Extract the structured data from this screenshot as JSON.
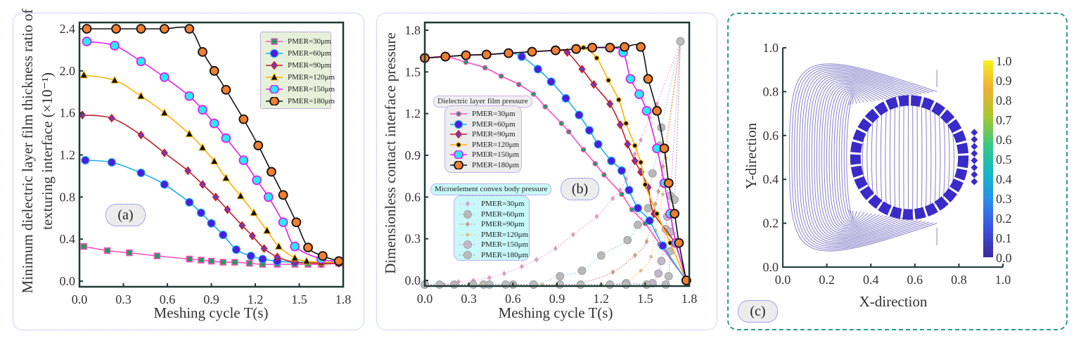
{
  "chart_data": [
    {
      "panel_label": "(a)",
      "type": "line",
      "xlabel": "Meshing cycle T(s)",
      "ylabel_line1": "Minimum dielectric layer film thickness ratio of",
      "ylabel_line2": "texturing interface (×10⁻¹)",
      "xlim": [
        0,
        1.8
      ],
      "ylim": [
        0,
        2.4
      ],
      "x_ticks": [
        "0.0",
        "0.3",
        "0.6",
        "0.9",
        "1.2",
        "1.5",
        "1.8"
      ],
      "y_ticks": [
        "0.0",
        "0.4",
        "0.8",
        "1.2",
        "1.6",
        "2.0",
        "2.4"
      ],
      "legend_placement": "top-right",
      "series": [
        {
          "name": "PMER=30μm",
          "color": "#ff4fc8",
          "marker": "square",
          "marker_fill": "#1f9e5a",
          "x": [
            0.03,
            0.19,
            0.34,
            0.53,
            0.75,
            0.83,
            0.9,
            0.98,
            1.06,
            1.16,
            1.25,
            1.35,
            1.47,
            1.56,
            1.65,
            1.77
          ],
          "y": [
            0.33,
            0.29,
            0.27,
            0.24,
            0.21,
            0.2,
            0.19,
            0.18,
            0.18,
            0.17,
            0.16,
            0.16,
            0.16,
            0.16,
            0.16,
            0.17
          ]
        },
        {
          "name": "PMER=60μm",
          "color": "#1eaaf0",
          "marker": "circle",
          "marker_fill": "#4a1de0",
          "x": [
            0.04,
            0.22,
            0.42,
            0.58,
            0.75,
            0.83,
            0.9,
            0.98,
            1.07,
            1.17,
            1.25,
            1.35,
            1.47,
            1.65,
            1.77
          ],
          "y": [
            1.15,
            1.13,
            1.03,
            0.92,
            0.75,
            0.65,
            0.55,
            0.44,
            0.3,
            0.24,
            0.21,
            0.19,
            0.18,
            0.18,
            0.18
          ]
        },
        {
          "name": "PMER=90μm",
          "color": "#c0202a",
          "marker": "diamond",
          "marker_fill": "#6a3ad0",
          "x": [
            0.02,
            0.22,
            0.42,
            0.58,
            0.74,
            0.84,
            0.93,
            1.01,
            1.11,
            1.18,
            1.26,
            1.35,
            1.47,
            1.65,
            1.77
          ],
          "y": [
            1.58,
            1.55,
            1.39,
            1.22,
            1.05,
            0.92,
            0.8,
            0.68,
            0.53,
            0.43,
            0.31,
            0.23,
            0.18,
            0.17,
            0.17
          ]
        },
        {
          "name": "PMER=120μm",
          "color": "#ffb000",
          "marker": "triangle",
          "marker_fill": "#111111",
          "x": [
            0.03,
            0.24,
            0.42,
            0.58,
            0.75,
            0.84,
            0.92,
            1.0,
            1.1,
            1.19,
            1.28,
            1.36,
            1.47,
            1.55,
            1.65,
            1.77
          ],
          "y": [
            1.96,
            1.91,
            1.76,
            1.6,
            1.4,
            1.27,
            1.14,
            0.98,
            0.81,
            0.65,
            0.48,
            0.33,
            0.22,
            0.19,
            0.18,
            0.18
          ]
        },
        {
          "name": "PMER=150μm",
          "color": "#dd22ee",
          "marker": "circle-large",
          "marker_fill": "#22eef8",
          "x": [
            0.05,
            0.24,
            0.42,
            0.58,
            0.75,
            0.84,
            0.92,
            1.0,
            1.12,
            1.21,
            1.29,
            1.39,
            1.47,
            1.65,
            1.77
          ],
          "y": [
            2.28,
            2.24,
            2.09,
            1.94,
            1.76,
            1.63,
            1.5,
            1.36,
            1.15,
            0.96,
            0.8,
            0.56,
            0.33,
            0.21,
            0.19
          ]
        },
        {
          "name": "PMER=180μm",
          "color": "#111111",
          "marker": "circle-large",
          "marker_fill": "#f07f30",
          "x": [
            0.05,
            0.25,
            0.42,
            0.58,
            0.75,
            0.84,
            0.92,
            1.0,
            1.12,
            1.22,
            1.31,
            1.39,
            1.48,
            1.56,
            1.66,
            1.77
          ],
          "y": [
            2.4,
            2.4,
            2.4,
            2.4,
            2.4,
            2.18,
            2.0,
            1.82,
            1.54,
            1.29,
            1.04,
            0.82,
            0.56,
            0.32,
            0.24,
            0.19
          ]
        }
      ]
    },
    {
      "panel_label": "(b)",
      "type": "line",
      "xlabel": "Meshing cycle T(s)",
      "ylabel": "Dimensionless contact interface pressure",
      "xlim": [
        0,
        1.8
      ],
      "ylim": [
        -0.04,
        1.86
      ],
      "x_ticks": [
        "0.0",
        "0.3",
        "0.6",
        "0.9",
        "1.2",
        "1.5",
        "1.8"
      ],
      "y_ticks": [
        "0.0",
        "0.3",
        "0.6",
        "0.9",
        "1.2",
        "1.5",
        "1.8"
      ],
      "legend_groups": [
        {
          "title": "Dielectric layer film pressure",
          "placement": "center-left"
        },
        {
          "title": "Microelement convex body pressure",
          "placement": "bottom-left"
        }
      ],
      "series_film": [
        {
          "name": "PMER=30μm",
          "color": "#ff4fc8",
          "marker": "dot",
          "marker_fill": "#1f9e5a",
          "x": [
            0,
            0.14,
            0.28,
            0.41,
            0.52,
            0.64,
            0.74,
            0.82,
            0.93,
            0.98,
            1.08,
            1.16,
            1.22,
            1.34,
            1.41,
            1.5,
            1.6,
            1.78
          ],
          "y": [
            1.6,
            1.61,
            1.57,
            1.53,
            1.47,
            1.41,
            1.34,
            1.25,
            1.13,
            1.07,
            0.94,
            0.84,
            0.76,
            0.62,
            0.51,
            0.41,
            0.26,
            0.0
          ]
        },
        {
          "name": "PMER=60μm",
          "color": "#1eaaf0",
          "marker": "circle",
          "marker_fill": "#4a1de0",
          "x": [
            0,
            0.14,
            0.28,
            0.42,
            0.57,
            0.66,
            0.77,
            0.86,
            0.96,
            1.05,
            1.12,
            1.18,
            1.27,
            1.34,
            1.39,
            1.45,
            1.53,
            1.62,
            1.78
          ],
          "y": [
            1.6,
            1.61,
            1.62,
            1.625,
            1.635,
            1.61,
            1.52,
            1.43,
            1.31,
            1.19,
            1.08,
            0.98,
            0.86,
            0.79,
            0.65,
            0.52,
            0.43,
            0.25,
            0.0
          ]
        },
        {
          "name": "PMER=90μm",
          "color": "#c0202a",
          "marker": "diamond",
          "marker_fill": "#6a3ad0",
          "x": [
            0,
            0.14,
            0.28,
            0.42,
            0.57,
            0.73,
            0.89,
            0.97,
            1.07,
            1.15,
            1.26,
            1.33,
            1.38,
            1.43,
            1.47,
            1.52,
            1.56,
            1.7,
            1.78
          ],
          "y": [
            1.6,
            1.61,
            1.62,
            1.625,
            1.635,
            1.645,
            1.655,
            1.64,
            1.52,
            1.41,
            1.27,
            1.12,
            0.98,
            0.86,
            0.78,
            0.67,
            0.48,
            0.27,
            0.0
          ]
        },
        {
          "name": "PMER=120μm",
          "color": "#ffb000",
          "marker": "dot",
          "marker_fill": "#111111",
          "x": [
            0,
            0.14,
            0.28,
            0.42,
            0.57,
            0.73,
            0.89,
            1.03,
            1.08,
            1.17,
            1.25,
            1.32,
            1.37,
            1.43,
            1.47,
            1.5,
            1.58,
            1.67,
            1.78
          ],
          "y": [
            1.6,
            1.61,
            1.62,
            1.625,
            1.635,
            1.645,
            1.655,
            1.665,
            1.675,
            1.6,
            1.44,
            1.3,
            1.13,
            0.97,
            0.85,
            0.69,
            0.48,
            0.27,
            0.0
          ]
        },
        {
          "name": "PMER=150μm",
          "color": "#dd22ee",
          "marker": "circle-large",
          "marker_fill": "#22eef8",
          "x": [
            0,
            0.14,
            0.28,
            0.42,
            0.57,
            0.73,
            0.89,
            1.03,
            1.14,
            1.26,
            1.35,
            1.4,
            1.46,
            1.51,
            1.58,
            1.63,
            1.67,
            1.71,
            1.78
          ],
          "y": [
            1.6,
            1.61,
            1.62,
            1.625,
            1.635,
            1.645,
            1.655,
            1.665,
            1.675,
            1.675,
            1.64,
            1.45,
            1.34,
            1.22,
            0.95,
            0.7,
            0.48,
            0.27,
            0.0
          ]
        },
        {
          "name": "PMER=180μm",
          "color": "#111111",
          "marker": "circle-large",
          "marker_fill": "#f07f30",
          "x": [
            0,
            0.14,
            0.28,
            0.42,
            0.57,
            0.73,
            0.89,
            1.03,
            1.14,
            1.26,
            1.36,
            1.47,
            1.52,
            1.58,
            1.63,
            1.66,
            1.7,
            1.73,
            1.78
          ],
          "y": [
            1.6,
            1.61,
            1.62,
            1.625,
            1.635,
            1.645,
            1.655,
            1.665,
            1.675,
            1.675,
            1.68,
            1.68,
            1.45,
            1.22,
            0.95,
            0.7,
            0.48,
            0.27,
            0.0
          ]
        }
      ],
      "series_convex": [
        {
          "name": "PMER=30μm",
          "color": "#f2a0d8",
          "marker": "diamond-small",
          "marker_fill": "#d8a0c0",
          "x": [
            0,
            0.13,
            0.23,
            0.33,
            0.44,
            0.54,
            0.66,
            0.76,
            0.89,
            1.01,
            1.17,
            1.28,
            1.33,
            1.37,
            1.43,
            1.47,
            1.53,
            1.58,
            1.74
          ],
          "y": [
            -0.03,
            -0.03,
            -0.01,
            0.0,
            0.02,
            0.05,
            0.1,
            0.15,
            0.23,
            0.33,
            0.46,
            0.59,
            0.65,
            0.73,
            0.91,
            1.01,
            1.17,
            1.27,
            1.72
          ]
        },
        {
          "name": "PMER=60μm",
          "color": "#8ad4f0",
          "marker": "circle-grey",
          "marker_fill": "#b8b8b8",
          "x": [
            0,
            0.2,
            0.4,
            0.6,
            0.74,
            0.92,
            1.07,
            1.2,
            1.38,
            1.45,
            1.52,
            1.55,
            1.6,
            1.61,
            1.74
          ],
          "y": [
            -0.03,
            -0.03,
            -0.03,
            -0.03,
            -0.03,
            0.03,
            0.07,
            0.18,
            0.29,
            0.4,
            0.52,
            0.77,
            0.97,
            1.1,
            1.72
          ]
        },
        {
          "name": "PMER=90μm",
          "color": "#d88888",
          "marker": "diamond-small",
          "marker_fill": "#c8a090",
          "x": [
            0,
            0.3,
            0.6,
            0.9,
            1.06,
            1.28,
            1.43,
            1.51,
            1.57,
            1.59,
            1.62,
            1.74
          ],
          "y": [
            -0.03,
            -0.03,
            -0.03,
            -0.03,
            -0.02,
            0.06,
            0.18,
            0.28,
            0.55,
            0.64,
            0.82,
            1.72
          ]
        },
        {
          "name": "PMER=120μm",
          "color": "#f2c860",
          "marker": "dot-small",
          "marker_fill": "#d8c090",
          "x": [
            0,
            0.4,
            0.8,
            1.2,
            1.35,
            1.47,
            1.54,
            1.57,
            1.62,
            1.64,
            1.74
          ],
          "y": [
            -0.03,
            -0.03,
            -0.03,
            -0.03,
            -0.02,
            0.07,
            0.17,
            0.36,
            0.62,
            0.88,
            1.72
          ]
        },
        {
          "name": "PMER=150μm",
          "color": "#d888e8",
          "marker": "circle-grey",
          "marker_fill": "#c0b8c8",
          "x": [
            0,
            0.44,
            0.74,
            1.06,
            1.26,
            1.37,
            1.51,
            1.55,
            1.59,
            1.61,
            1.64,
            1.65,
            1.67,
            1.74
          ],
          "y": [
            -0.03,
            -0.03,
            -0.03,
            -0.03,
            -0.03,
            -0.02,
            -0.03,
            -0.02,
            0.05,
            0.14,
            0.37,
            0.46,
            0.61,
            1.72
          ]
        },
        {
          "name": "PMER=180μm",
          "color": "#9a9a9a",
          "marker": "circle-grey",
          "marker_fill": "#bcbcbc",
          "x": [
            0,
            0.1,
            0.33,
            0.55,
            0.74,
            0.92,
            1.06,
            1.26,
            1.37,
            1.51,
            1.64,
            1.66,
            1.67,
            1.67,
            1.7,
            1.74
          ],
          "y": [
            -0.03,
            -0.03,
            -0.03,
            -0.03,
            -0.03,
            -0.03,
            -0.03,
            -0.03,
            -0.03,
            -0.03,
            -0.03,
            0.03,
            0.21,
            0.35,
            0.58,
            1.72
          ]
        }
      ]
    },
    {
      "panel_label": "(c)",
      "type": "contour",
      "xlabel": "X-direction",
      "ylabel": "Y-direction",
      "xlim": [
        0,
        1.0
      ],
      "ylim": [
        0,
        1.0
      ],
      "x_ticks": [
        "0.0",
        "0.2",
        "0.4",
        "0.6",
        "0.8",
        "1.0"
      ],
      "y_ticks": [
        "0.0",
        "0.2",
        "0.4",
        "0.6",
        "0.8",
        "1.0"
      ],
      "colorbar": {
        "range": [
          0,
          1.0
        ],
        "ticks": [
          "0.0",
          "0.1",
          "0.2",
          "0.3",
          "0.4",
          "0.5",
          "0.6",
          "0.7",
          "0.8",
          "0.9",
          "1.0"
        ],
        "colors": [
          "#3b2a9a",
          "#3b4fe0",
          "#2a8ee8",
          "#14b8c8",
          "#38c880",
          "#a8c830",
          "#f0b030",
          "#f8f020"
        ],
        "placement": "right"
      },
      "contour_color": "#8a80c8",
      "ring_color": "#3a2bc8"
    }
  ]
}
